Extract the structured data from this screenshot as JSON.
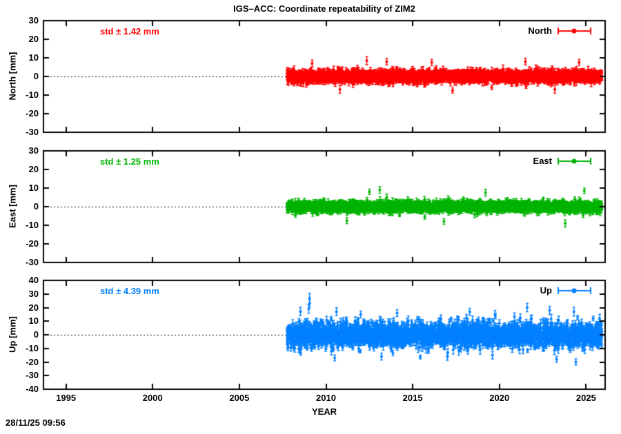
{
  "title": "IGS–ACC: Coordinate repeatability of ZIM2",
  "timestamp": "28/11/25 09:56",
  "chart_data": {
    "type": "scatter",
    "subtype": "yerrorbars-time-series",
    "xlabel": "YEAR",
    "x_ticks": [
      1995,
      2000,
      2005,
      2010,
      2015,
      2020,
      2025
    ],
    "xlim": [
      1993.7,
      2026.1
    ],
    "grid": "dotted-zero-line-only",
    "legend_position": "top-right-inside",
    "background": "#ffffff",
    "frame_color": "#000000",
    "data_start_year": 2007.75,
    "data_end_year": 2025.92,
    "points_per_year": 150,
    "panels": [
      {
        "name": "North",
        "ylabel": "North [mm]",
        "legend_label": "North",
        "std_label": "std ± 1.42 mm",
        "std_mm": 1.42,
        "color": "#ff0000",
        "ylim": [
          -30,
          30
        ],
        "y_ticks": [
          30,
          20,
          10,
          0,
          -10,
          -20,
          -30
        ],
        "errorbar_mm": 1.5,
        "spike_max_mm": 8.5,
        "seed": 7,
        "outliers": [
          {
            "x": 2009.2,
            "y": 7.0
          },
          {
            "x": 2012.35,
            "y": 8.5
          },
          {
            "x": 2013.5,
            "y": 8.0
          },
          {
            "x": 2016.1,
            "y": 7.5
          },
          {
            "x": 2021.5,
            "y": 8.0
          },
          {
            "x": 2024.6,
            "y": 7.5
          },
          {
            "x": 2010.8,
            "y": -7.0
          },
          {
            "x": 2017.3,
            "y": -7.5
          },
          {
            "x": 2023.2,
            "y": -7.0
          }
        ]
      },
      {
        "name": "East",
        "ylabel": "East [mm]",
        "legend_label": "East",
        "std_label": "std ± 1.25 mm",
        "std_mm": 1.25,
        "color": "#00b400",
        "ylim": [
          -30,
          30
        ],
        "y_ticks": [
          30,
          20,
          10,
          0,
          -10,
          -20,
          -30
        ],
        "errorbar_mm": 1.4,
        "spike_max_mm": 9,
        "seed": 13,
        "outliers": [
          {
            "x": 2012.5,
            "y": 8.0
          },
          {
            "x": 2013.1,
            "y": 9.0
          },
          {
            "x": 2019.2,
            "y": 7.5
          },
          {
            "x": 2024.9,
            "y": 8.5
          },
          {
            "x": 2016.8,
            "y": -8.0
          },
          {
            "x": 2023.8,
            "y": -9.0
          },
          {
            "x": 2011.2,
            "y": -7.5
          }
        ]
      },
      {
        "name": "Up",
        "ylabel": "Up [mm]",
        "legend_label": "Up",
        "std_label": "std ± 4.39 mm",
        "std_mm": 4.39,
        "color": "#0080ff",
        "ylim": [
          -40,
          40
        ],
        "y_ticks": [
          40,
          30,
          20,
          10,
          0,
          -10,
          -20,
          -30,
          -40
        ],
        "errorbar_mm": 2.4,
        "spike_max_mm": 20,
        "seed": 42,
        "outliers": [
          {
            "x": 2009.05,
            "y": 27.0
          },
          {
            "x": 2009.05,
            "y": 23.0
          },
          {
            "x": 2009.0,
            "y": 19.0
          },
          {
            "x": 2010.6,
            "y": 17.0
          },
          {
            "x": 2012.0,
            "y": 15.0
          },
          {
            "x": 2014.1,
            "y": 16.0
          },
          {
            "x": 2021.6,
            "y": 20.0
          },
          {
            "x": 2022.9,
            "y": 18.0
          },
          {
            "x": 2024.3,
            "y": 17.0
          },
          {
            "x": 2010.5,
            "y": -17.0
          },
          {
            "x": 2013.2,
            "y": -16.0
          },
          {
            "x": 2017.0,
            "y": -16.0
          },
          {
            "x": 2023.3,
            "y": -18.0
          },
          {
            "x": 2019.6,
            "y": -15.0
          }
        ]
      }
    ]
  }
}
